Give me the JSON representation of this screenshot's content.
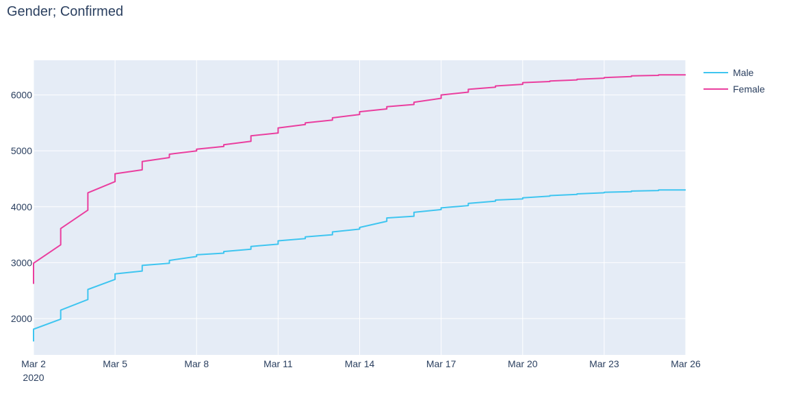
{
  "chart_data": {
    "type": "line",
    "title": "Gender; Confirmed",
    "xlabel": "",
    "ylabel": "",
    "x_ticks": [
      {
        "day": 0,
        "label": "Mar 2",
        "sublabel": "2020"
      },
      {
        "day": 3,
        "label": "Mar 5",
        "sublabel": ""
      },
      {
        "day": 6,
        "label": "Mar 8",
        "sublabel": ""
      },
      {
        "day": 9,
        "label": "Mar 11",
        "sublabel": ""
      },
      {
        "day": 12,
        "label": "Mar 14",
        "sublabel": ""
      },
      {
        "day": 15,
        "label": "Mar 17",
        "sublabel": ""
      },
      {
        "day": 18,
        "label": "Mar 20",
        "sublabel": ""
      },
      {
        "day": 21,
        "label": "Mar 23",
        "sublabel": ""
      },
      {
        "day": 24,
        "label": "Mar 26",
        "sublabel": ""
      }
    ],
    "y_ticks": [
      2000,
      3000,
      4000,
      5000,
      6000
    ],
    "xlim": [
      "Mar 2",
      "Mar 26"
    ],
    "ylim": [
      1350,
      6620
    ],
    "grid": true,
    "legend_position": "top-right",
    "series": [
      {
        "name": "Male",
        "color": "#3ec5f0",
        "points": [
          [
            0,
            1590
          ],
          [
            0,
            1810
          ],
          [
            1,
            1990
          ],
          [
            1,
            2150
          ],
          [
            2,
            2340
          ],
          [
            2,
            2520
          ],
          [
            3,
            2700
          ],
          [
            3,
            2800
          ],
          [
            4,
            2850
          ],
          [
            4,
            2950
          ],
          [
            5,
            2990
          ],
          [
            5,
            3040
          ],
          [
            6,
            3110
          ],
          [
            6,
            3140
          ],
          [
            7,
            3170
          ],
          [
            7,
            3200
          ],
          [
            8,
            3240
          ],
          [
            8,
            3290
          ],
          [
            9,
            3330
          ],
          [
            9,
            3390
          ],
          [
            10,
            3430
          ],
          [
            10,
            3460
          ],
          [
            11,
            3500
          ],
          [
            11,
            3550
          ],
          [
            12,
            3600
          ],
          [
            12,
            3630
          ],
          [
            13,
            3740
          ],
          [
            13,
            3800
          ],
          [
            14,
            3830
          ],
          [
            14,
            3900
          ],
          [
            15,
            3950
          ],
          [
            15,
            3980
          ],
          [
            16,
            4020
          ],
          [
            16,
            4060
          ],
          [
            17,
            4100
          ],
          [
            17,
            4120
          ],
          [
            18,
            4140
          ],
          [
            18,
            4160
          ],
          [
            19,
            4190
          ],
          [
            19,
            4200
          ],
          [
            20,
            4220
          ],
          [
            20,
            4230
          ],
          [
            21,
            4250
          ],
          [
            21,
            4260
          ],
          [
            22,
            4270
          ],
          [
            22,
            4280
          ],
          [
            23,
            4290
          ],
          [
            23,
            4300
          ],
          [
            24,
            4300
          ]
        ]
      },
      {
        "name": "Female",
        "color": "#ea3d9e",
        "points": [
          [
            0,
            2620
          ],
          [
            0,
            2990
          ],
          [
            1,
            3320
          ],
          [
            1,
            3610
          ],
          [
            2,
            3940
          ],
          [
            2,
            4250
          ],
          [
            3,
            4450
          ],
          [
            3,
            4590
          ],
          [
            4,
            4660
          ],
          [
            4,
            4810
          ],
          [
            5,
            4880
          ],
          [
            5,
            4940
          ],
          [
            6,
            5000
          ],
          [
            6,
            5030
          ],
          [
            7,
            5080
          ],
          [
            7,
            5110
          ],
          [
            8,
            5170
          ],
          [
            8,
            5270
          ],
          [
            9,
            5320
          ],
          [
            9,
            5410
          ],
          [
            10,
            5470
          ],
          [
            10,
            5500
          ],
          [
            11,
            5550
          ],
          [
            11,
            5590
          ],
          [
            12,
            5650
          ],
          [
            12,
            5700
          ],
          [
            13,
            5750
          ],
          [
            13,
            5790
          ],
          [
            14,
            5830
          ],
          [
            14,
            5870
          ],
          [
            15,
            5940
          ],
          [
            15,
            6000
          ],
          [
            16,
            6050
          ],
          [
            16,
            6100
          ],
          [
            17,
            6140
          ],
          [
            17,
            6160
          ],
          [
            18,
            6190
          ],
          [
            18,
            6220
          ],
          [
            19,
            6240
          ],
          [
            19,
            6250
          ],
          [
            20,
            6270
          ],
          [
            20,
            6280
          ],
          [
            21,
            6300
          ],
          [
            21,
            6310
          ],
          [
            22,
            6330
          ],
          [
            22,
            6340
          ],
          [
            23,
            6350
          ],
          [
            23,
            6360
          ],
          [
            24,
            6360
          ]
        ]
      }
    ]
  }
}
